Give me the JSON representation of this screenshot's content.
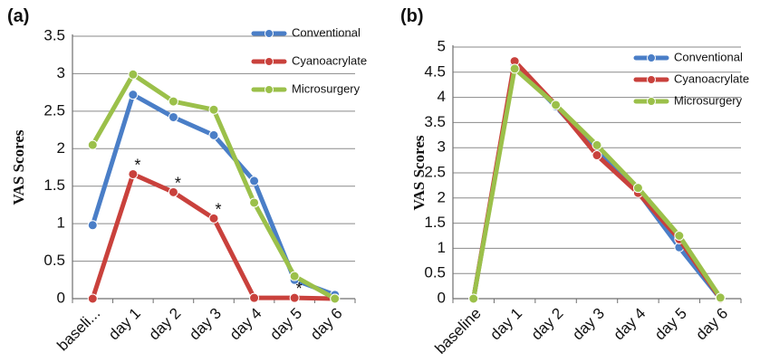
{
  "chart_data": [
    {
      "panel_label": "(a)",
      "type": "line",
      "ylabel": "VAS Scores",
      "ylim": [
        0,
        3.5
      ],
      "yticks": [
        "0",
        "0.5",
        "1",
        "1.5",
        "2",
        "2.5",
        "3",
        "3.5"
      ],
      "categories": [
        "baseli...",
        "day 1",
        "day 2",
        "day 3",
        "day 4",
        "day 5",
        "day 6"
      ],
      "grid": "horizontal",
      "legend_position": "top-right",
      "series": [
        {
          "name": "Conventional",
          "color": "#4a7ec7",
          "values": [
            0.98,
            2.72,
            2.42,
            2.18,
            1.57,
            0.25,
            0.05
          ]
        },
        {
          "name": "Cyanoacrylate",
          "color": "#c9413c",
          "values": [
            0,
            1.66,
            1.42,
            1.07,
            0.01,
            0.01,
            0
          ]
        },
        {
          "name": "Microsurgery",
          "color": "#9bc04a",
          "values": [
            2.05,
            2.99,
            2.63,
            2.52,
            1.28,
            0.3,
            0
          ]
        }
      ],
      "annotations": [
        {
          "text": "*",
          "category": "day 1",
          "value": 1.66
        },
        {
          "text": "*",
          "category": "day 2",
          "value": 1.42
        },
        {
          "text": "*",
          "category": "day 3",
          "value": 1.07
        },
        {
          "text": "*",
          "category": "day 5",
          "value": 0.01
        }
      ]
    },
    {
      "panel_label": "(b)",
      "type": "line",
      "ylabel": "VAS Scores",
      "ylim": [
        0,
        5
      ],
      "yticks": [
        "0",
        "0.5",
        "1",
        "1.5",
        "2",
        "2.5",
        "3",
        "3.5",
        "4",
        "4.5",
        "5"
      ],
      "categories": [
        "baseline",
        "day 1",
        "day 2",
        "day 3",
        "day 4",
        "day 5",
        "day 6"
      ],
      "grid": "horizontal",
      "legend_position": "top-right",
      "series": [
        {
          "name": "Conventional",
          "color": "#4a7ec7",
          "values": [
            0,
            4.65,
            3.82,
            2.92,
            2.12,
            1.02,
            0
          ]
        },
        {
          "name": "Cyanoacrylate",
          "color": "#c9413c",
          "values": [
            0,
            4.72,
            3.85,
            2.85,
            2.1,
            1.18,
            0
          ]
        },
        {
          "name": "Microsurgery",
          "color": "#9bc04a",
          "values": [
            0,
            4.57,
            3.85,
            3.05,
            2.2,
            1.25,
            0.02
          ]
        }
      ],
      "annotations": []
    }
  ]
}
